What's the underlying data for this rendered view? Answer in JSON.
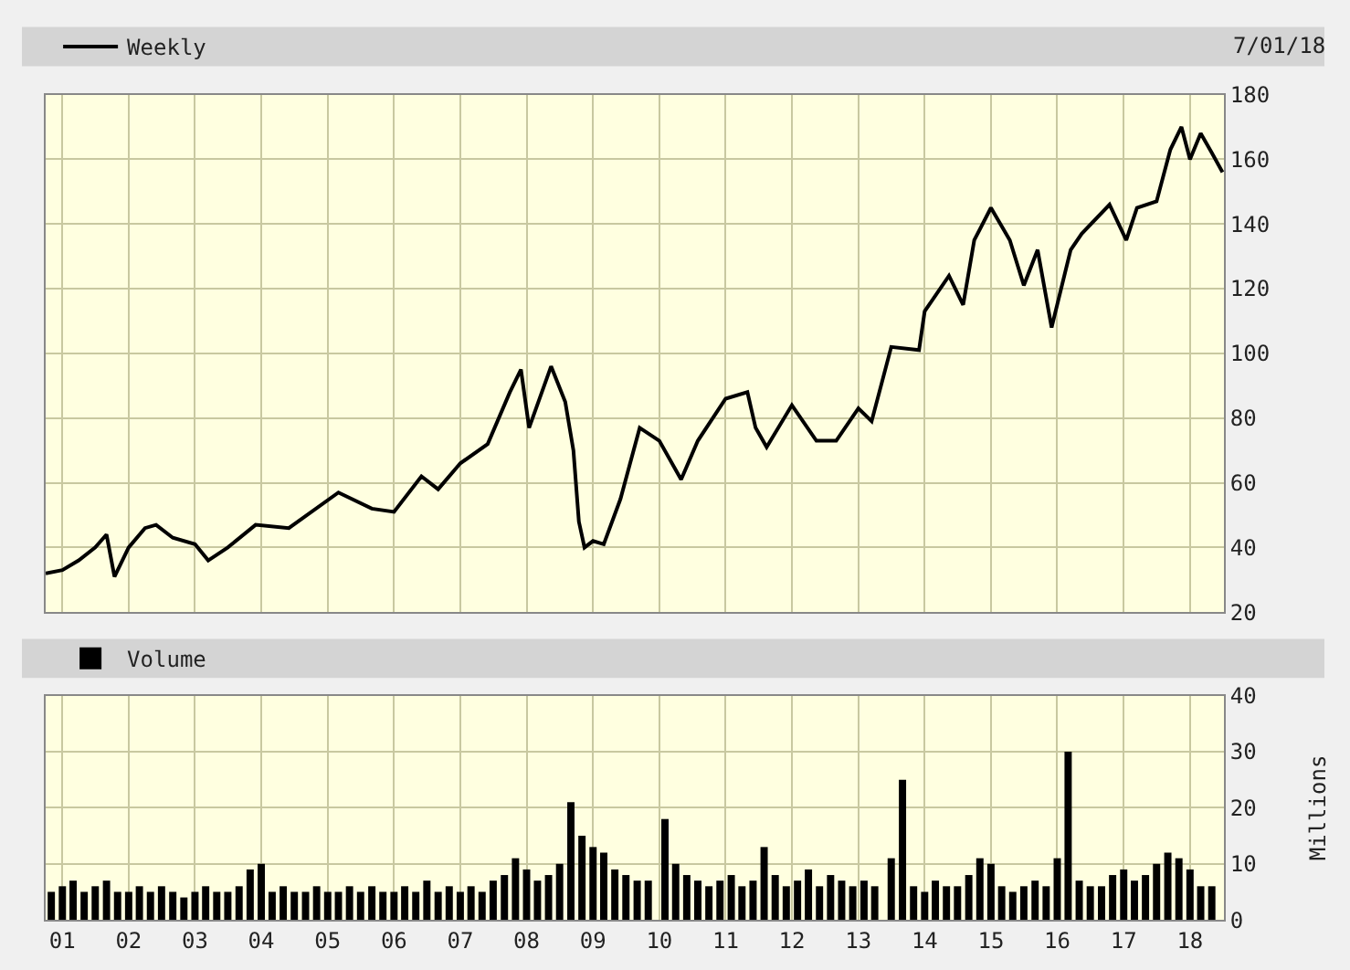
{
  "chart_data": [
    {
      "type": "line",
      "x": [
        "2000-10-01",
        "2001-01-01",
        "2001-04-01",
        "2001-07-01",
        "2001-09-01",
        "2001-10-15",
        "2002-01-01",
        "2002-04-01",
        "2002-06-01",
        "2002-09-01",
        "2003-01-01",
        "2003-03-15",
        "2003-07-01",
        "2003-12-01",
        "2004-06-01",
        "2005-03-01",
        "2005-09-01",
        "2006-01-01",
        "2006-06-01",
        "2006-09-01",
        "2007-01-01",
        "2007-06-01",
        "2007-10-01",
        "2007-12-01",
        "2008-01-15",
        "2008-05-15",
        "2008-08-01",
        "2008-09-15",
        "2008-10-15",
        "2008-11-15",
        "2009-01-01",
        "2009-03-01",
        "2009-06-01",
        "2009-09-15",
        "2010-01-01",
        "2010-05-01",
        "2010-08-01",
        "2011-01-01",
        "2011-05-01",
        "2011-06-15",
        "2011-08-15",
        "2012-01-01",
        "2012-05-15",
        "2012-09-01",
        "2013-01-01",
        "2013-03-15",
        "2013-07-01",
        "2013-12-01",
        "2014-01-01",
        "2014-05-15",
        "2014-08-01",
        "2014-10-01",
        "2015-01-01",
        "2015-04-15",
        "2015-07-01",
        "2015-09-15",
        "2015-12-01",
        "2016-03-15",
        "2016-05-15",
        "2016-10-15",
        "2017-01-15",
        "2017-03-15",
        "2017-07-01",
        "2017-09-15",
        "2017-11-15",
        "2018-01-01",
        "2018-03-01",
        "2018-05-01",
        "2018-06-29"
      ],
      "xlim": [
        "2000-10-01",
        "2018-07-07"
      ],
      "xticks": [
        {
          "value": "2001-01-01",
          "label": null
        },
        {
          "value": "2002-01-01",
          "label": null
        },
        {
          "value": "2003-01-01",
          "label": null
        },
        {
          "value": "2004-01-01",
          "label": null
        },
        {
          "value": "2005-01-01",
          "label": null
        },
        {
          "value": "2006-01-01",
          "label": null
        },
        {
          "value": "2007-01-01",
          "label": null
        },
        {
          "value": "2008-01-01",
          "label": null
        },
        {
          "value": "2009-01-01",
          "label": null
        },
        {
          "value": "2010-01-01",
          "label": null
        },
        {
          "value": "2011-01-01",
          "label": null
        },
        {
          "value": "2012-01-01",
          "label": null
        },
        {
          "value": "2013-01-01",
          "label": null
        },
        {
          "value": "2014-01-01",
          "label": null
        },
        {
          "value": "2015-01-01",
          "label": null
        },
        {
          "value": "2016-01-01",
          "label": null
        },
        {
          "value": "2017-01-01",
          "label": null
        },
        {
          "value": "2018-01-01",
          "label": null
        }
      ],
      "ylim": [
        20,
        180
      ],
      "yticks": [
        20,
        40,
        60,
        80,
        100,
        120,
        140,
        160,
        180
      ],
      "series": [
        {
          "name": "Weekly",
          "color": "#000000",
          "values": [
            32,
            33,
            36,
            40,
            44,
            31,
            40,
            46,
            47,
            43,
            41,
            36,
            40,
            47,
            46,
            57,
            52,
            51,
            62,
            58,
            66,
            72,
            88,
            95,
            77,
            96,
            85,
            70,
            48,
            40,
            42,
            41,
            55,
            77,
            73,
            61,
            73,
            86,
            88,
            77,
            71,
            84,
            73,
            73,
            83,
            79,
            102,
            101,
            113,
            124,
            115,
            135,
            145,
            135,
            121,
            132,
            108,
            132,
            137,
            146,
            135,
            145,
            147,
            163,
            170,
            160,
            168,
            162,
            156
          ]
        }
      ],
      "grid": true,
      "tick_labels": "y",
      "legend": "top left",
      "annotations": [
        "7/01/18"
      ]
    },
    {
      "type": "bar",
      "x": [
        "2000-11-01",
        "2001-01-01",
        "2001-03-01",
        "2001-05-01",
        "2001-07-01",
        "2001-09-01",
        "2001-11-01",
        "2002-01-01",
        "2002-03-01",
        "2002-05-01",
        "2002-07-01",
        "2002-09-01",
        "2002-11-01",
        "2003-01-01",
        "2003-03-01",
        "2003-05-01",
        "2003-07-01",
        "2003-09-01",
        "2003-11-01",
        "2004-01-01",
        "2004-03-01",
        "2004-05-01",
        "2004-07-01",
        "2004-09-01",
        "2004-11-01",
        "2005-01-01",
        "2005-03-01",
        "2005-05-01",
        "2005-07-01",
        "2005-09-01",
        "2005-11-01",
        "2006-01-01",
        "2006-03-01",
        "2006-05-01",
        "2006-07-01",
        "2006-09-01",
        "2006-11-01",
        "2007-01-01",
        "2007-03-01",
        "2007-05-01",
        "2007-07-01",
        "2007-09-01",
        "2007-11-01",
        "2008-01-01",
        "2008-03-01",
        "2008-05-01",
        "2008-07-01",
        "2008-09-01",
        "2008-11-01",
        "2009-01-01",
        "2009-03-01",
        "2009-05-01",
        "2009-07-01",
        "2009-09-01",
        "2009-11-01",
        "2010-02-01",
        "2010-04-01",
        "2010-06-01",
        "2010-08-01",
        "2010-10-01",
        "2010-12-01",
        "2011-02-01",
        "2011-04-01",
        "2011-06-01",
        "2011-08-01",
        "2011-10-01",
        "2011-12-01",
        "2012-02-01",
        "2012-04-01",
        "2012-06-01",
        "2012-08-01",
        "2012-10-01",
        "2012-12-01",
        "2013-02-01",
        "2013-04-01",
        "2013-07-01",
        "2013-09-01",
        "2013-11-01",
        "2014-01-01",
        "2014-03-01",
        "2014-05-01",
        "2014-07-01",
        "2014-09-01",
        "2014-11-01",
        "2015-01-01",
        "2015-03-01",
        "2015-05-01",
        "2015-07-01",
        "2015-09-01",
        "2015-11-01",
        "2016-01-01",
        "2016-03-01",
        "2016-05-01",
        "2016-07-01",
        "2016-09-01",
        "2016-11-01",
        "2017-01-01",
        "2017-03-01",
        "2017-05-01",
        "2017-07-01",
        "2017-09-01",
        "2017-11-01",
        "2018-01-01",
        "2018-03-01",
        "2018-05-01"
      ],
      "xlim": [
        "2000-10-01",
        "2018-07-07"
      ],
      "xticks": [
        {
          "value": "2001-01-01",
          "label": "01"
        },
        {
          "value": "2002-01-01",
          "label": "02"
        },
        {
          "value": "2003-01-01",
          "label": "03"
        },
        {
          "value": "2004-01-01",
          "label": "04"
        },
        {
          "value": "2005-01-01",
          "label": "05"
        },
        {
          "value": "2006-01-01",
          "label": "06"
        },
        {
          "value": "2007-01-01",
          "label": "07"
        },
        {
          "value": "2008-01-01",
          "label": "08"
        },
        {
          "value": "2009-01-01",
          "label": "09"
        },
        {
          "value": "2010-01-01",
          "label": "10"
        },
        {
          "value": "2011-01-01",
          "label": "11"
        },
        {
          "value": "2012-01-01",
          "label": "12"
        },
        {
          "value": "2013-01-01",
          "label": "13"
        },
        {
          "value": "2014-01-01",
          "label": "14"
        },
        {
          "value": "2015-01-01",
          "label": "15"
        },
        {
          "value": "2016-01-01",
          "label": "16"
        },
        {
          "value": "2017-01-01",
          "label": "17"
        },
        {
          "value": "2018-01-01",
          "label": "18"
        }
      ],
      "ylim": [
        0,
        40
      ],
      "yticks": [
        0,
        10,
        20,
        30,
        40
      ],
      "ylabel": "Millions",
      "series": [
        {
          "name": "Volume",
          "color": "#000000",
          "values": [
            5,
            6,
            7,
            5,
            6,
            7,
            5,
            5,
            6,
            5,
            6,
            5,
            4,
            5,
            6,
            5,
            5,
            6,
            9,
            10,
            5,
            6,
            5,
            5,
            6,
            5,
            5,
            6,
            5,
            6,
            5,
            5,
            6,
            5,
            7,
            5,
            6,
            5,
            6,
            5,
            7,
            8,
            11,
            9,
            7,
            8,
            10,
            21,
            15,
            13,
            12,
            9,
            8,
            7,
            7,
            18,
            10,
            8,
            7,
            6,
            7,
            8,
            6,
            7,
            13,
            8,
            6,
            7,
            9,
            6,
            8,
            7,
            6,
            7,
            6,
            11,
            25,
            6,
            5,
            7,
            6,
            6,
            8,
            11,
            10,
            6,
            5,
            6,
            7,
            6,
            11,
            30,
            7,
            6,
            6,
            8,
            9,
            7,
            8,
            10,
            12,
            11,
            9,
            6,
            6
          ]
        }
      ],
      "grid": true,
      "legend": "top left"
    }
  ]
}
